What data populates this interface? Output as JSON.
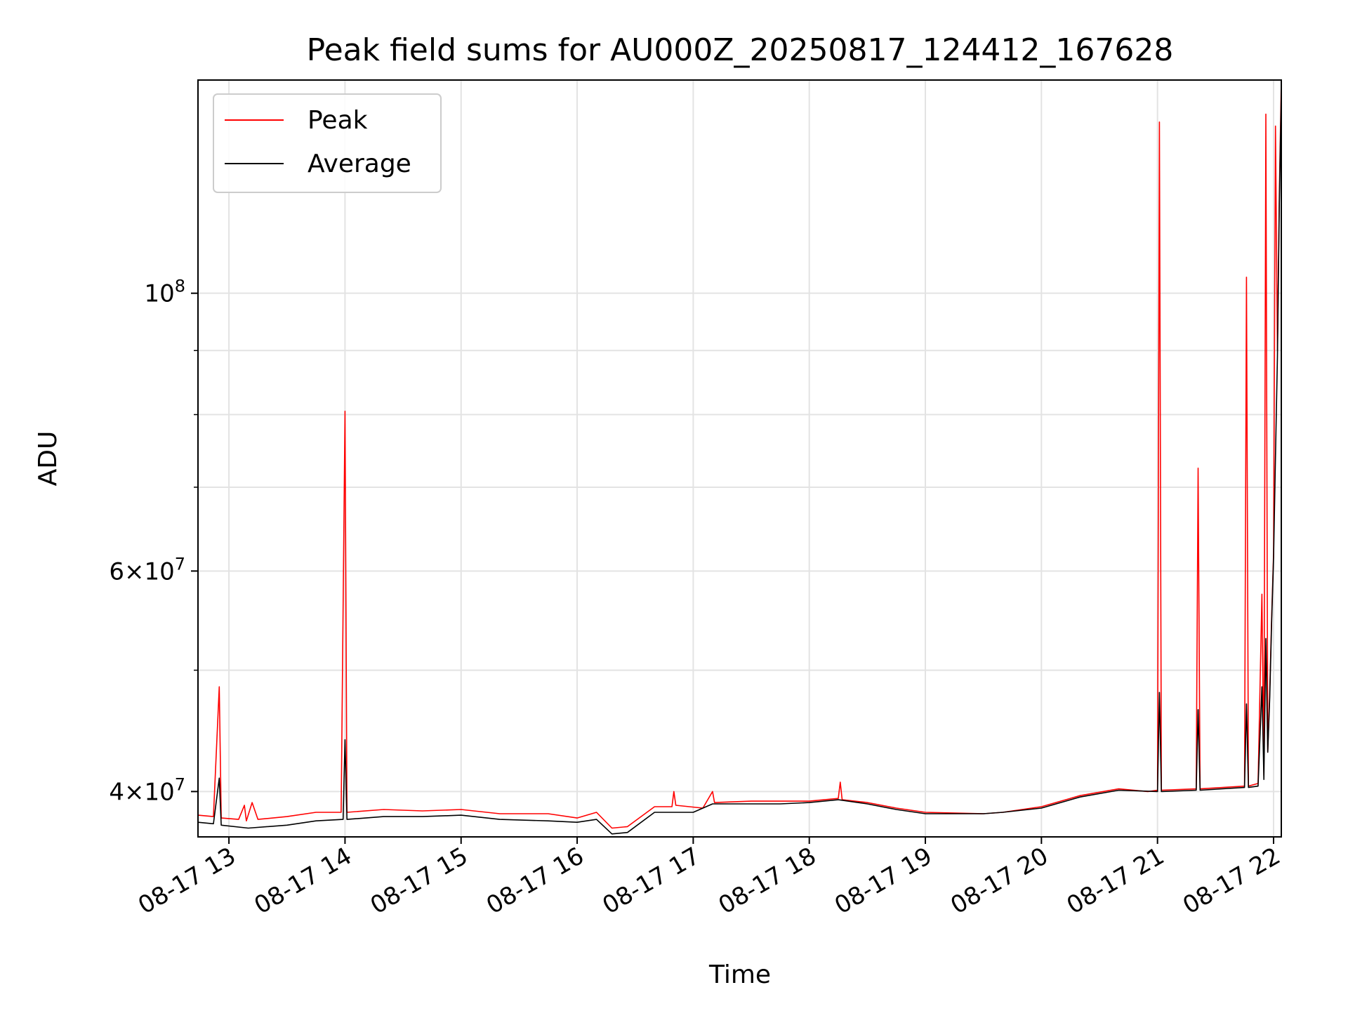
{
  "chart_data": {
    "type": "line",
    "title": "Peak field sums for AU000Z_20250817_124412_167628",
    "xlabel": "Time",
    "ylabel": "ADU",
    "y_scale": "log",
    "ylim": [
      36800000,
      148000000
    ],
    "xlim": [
      "2025-08-17 12:44",
      "2025-08-17 22:04"
    ],
    "grid": true,
    "legend": {
      "placement": "top-left"
    },
    "x_ticks": [
      {
        "value": "2025-08-17 13:00",
        "label": "08-17 13"
      },
      {
        "value": "2025-08-17 14:00",
        "label": "08-17 14"
      },
      {
        "value": "2025-08-17 15:00",
        "label": "08-17 15"
      },
      {
        "value": "2025-08-17 16:00",
        "label": "08-17 16"
      },
      {
        "value": "2025-08-17 17:00",
        "label": "08-17 17"
      },
      {
        "value": "2025-08-17 18:00",
        "label": "08-17 18"
      },
      {
        "value": "2025-08-17 19:00",
        "label": "08-17 19"
      },
      {
        "value": "2025-08-17 20:00",
        "label": "08-17 20"
      },
      {
        "value": "2025-08-17 21:00",
        "label": "08-17 21"
      },
      {
        "value": "2025-08-17 22:00",
        "label": "08-17 22"
      }
    ],
    "y_ticks_major": [
      {
        "value": 40000000,
        "mantissa": "4",
        "exponent": "7"
      },
      {
        "value": 60000000,
        "mantissa": "6",
        "exponent": "7"
      },
      {
        "value": 100000000,
        "mantissa": "",
        "exponent": "8"
      }
    ],
    "y_ticks_minor": [
      50000000,
      70000000,
      80000000,
      90000000
    ],
    "series": [
      {
        "name": "Peak",
        "color": "#ff0000",
        "points": [
          [
            "2025-08-17 12:44",
            38300000
          ],
          [
            "2025-08-17 12:52",
            38200000
          ],
          [
            "2025-08-17 12:55",
            48500000
          ],
          [
            "2025-08-17 12:56",
            38100000
          ],
          [
            "2025-08-17 13:05",
            38000000
          ],
          [
            "2025-08-17 13:08",
            39000000
          ],
          [
            "2025-08-17 13:09",
            37900000
          ],
          [
            "2025-08-17 13:12",
            39200000
          ],
          [
            "2025-08-17 13:15",
            38000000
          ],
          [
            "2025-08-17 13:30",
            38200000
          ],
          [
            "2025-08-17 13:45",
            38500000
          ],
          [
            "2025-08-17 13:58",
            38500000
          ],
          [
            "2025-08-17 14:00",
            80500000
          ],
          [
            "2025-08-17 14:01",
            38500000
          ],
          [
            "2025-08-17 14:20",
            38700000
          ],
          [
            "2025-08-17 14:40",
            38600000
          ],
          [
            "2025-08-17 15:00",
            38700000
          ],
          [
            "2025-08-17 15:20",
            38400000
          ],
          [
            "2025-08-17 15:45",
            38400000
          ],
          [
            "2025-08-17 16:00",
            38100000
          ],
          [
            "2025-08-17 16:10",
            38500000
          ],
          [
            "2025-08-17 16:18",
            37400000
          ],
          [
            "2025-08-17 16:26",
            37500000
          ],
          [
            "2025-08-17 16:40",
            38900000
          ],
          [
            "2025-08-17 16:49",
            38900000
          ],
          [
            "2025-08-17 16:50",
            40000000
          ],
          [
            "2025-08-17 16:51",
            39000000
          ],
          [
            "2025-08-17 17:05",
            38800000
          ],
          [
            "2025-08-17 17:10",
            40000000
          ],
          [
            "2025-08-17 17:11",
            39200000
          ],
          [
            "2025-08-17 17:30",
            39300000
          ],
          [
            "2025-08-17 17:45",
            39300000
          ],
          [
            "2025-08-17 18:00",
            39300000
          ],
          [
            "2025-08-17 18:15",
            39500000
          ],
          [
            "2025-08-17 18:16",
            40700000
          ],
          [
            "2025-08-17 18:17",
            39400000
          ],
          [
            "2025-08-17 18:30",
            39200000
          ],
          [
            "2025-08-17 18:45",
            38800000
          ],
          [
            "2025-08-17 19:00",
            38500000
          ],
          [
            "2025-08-17 19:30",
            38400000
          ],
          [
            "2025-08-17 19:40",
            38500000
          ],
          [
            "2025-08-17 20:00",
            38900000
          ],
          [
            "2025-08-17 20:20",
            39700000
          ],
          [
            "2025-08-17 20:40",
            40200000
          ],
          [
            "2025-08-17 20:55",
            40000000
          ],
          [
            "2025-08-17 21:00",
            40100000
          ],
          [
            "2025-08-17 21:01",
            137000000
          ],
          [
            "2025-08-17 21:02",
            40100000
          ],
          [
            "2025-08-17 21:20",
            40200000
          ],
          [
            "2025-08-17 21:21",
            72500000
          ],
          [
            "2025-08-17 21:22",
            40200000
          ],
          [
            "2025-08-17 21:45",
            40400000
          ],
          [
            "2025-08-17 21:46",
            103000000
          ],
          [
            "2025-08-17 21:47",
            40400000
          ],
          [
            "2025-08-17 21:52",
            40600000
          ],
          [
            "2025-08-17 21:54",
            57500000
          ],
          [
            "2025-08-17 21:55",
            41200000
          ],
          [
            "2025-08-17 21:56",
            139000000
          ],
          [
            "2025-08-17 21:57",
            43000000
          ],
          [
            "2025-08-17 21:58",
            48000000
          ],
          [
            "2025-08-17 21:59",
            55000000
          ],
          [
            "2025-08-17 22:00",
            62000000
          ],
          [
            "2025-08-17 22:01",
            136000000
          ],
          [
            "2025-08-17 22:02",
            90000000
          ],
          [
            "2025-08-17 22:03",
            120000000
          ],
          [
            "2025-08-17 22:04",
            148000000
          ]
        ]
      },
      {
        "name": "Average",
        "color": "#000000",
        "points": [
          [
            "2025-08-17 12:44",
            37800000
          ],
          [
            "2025-08-17 12:52",
            37700000
          ],
          [
            "2025-08-17 12:55",
            41000000
          ],
          [
            "2025-08-17 12:56",
            37600000
          ],
          [
            "2025-08-17 13:10",
            37400000
          ],
          [
            "2025-08-17 13:30",
            37600000
          ],
          [
            "2025-08-17 13:45",
            37900000
          ],
          [
            "2025-08-17 13:59",
            38000000
          ],
          [
            "2025-08-17 14:00",
            44000000
          ],
          [
            "2025-08-17 14:01",
            38000000
          ],
          [
            "2025-08-17 14:20",
            38200000
          ],
          [
            "2025-08-17 14:40",
            38200000
          ],
          [
            "2025-08-17 15:00",
            38300000
          ],
          [
            "2025-08-17 15:20",
            38000000
          ],
          [
            "2025-08-17 15:45",
            37900000
          ],
          [
            "2025-08-17 16:00",
            37800000
          ],
          [
            "2025-08-17 16:10",
            38000000
          ],
          [
            "2025-08-17 16:18",
            37000000
          ],
          [
            "2025-08-17 16:26",
            37100000
          ],
          [
            "2025-08-17 16:40",
            38500000
          ],
          [
            "2025-08-17 17:00",
            38500000
          ],
          [
            "2025-08-17 17:10",
            39100000
          ],
          [
            "2025-08-17 17:30",
            39100000
          ],
          [
            "2025-08-17 17:45",
            39100000
          ],
          [
            "2025-08-17 18:00",
            39200000
          ],
          [
            "2025-08-17 18:15",
            39400000
          ],
          [
            "2025-08-17 18:30",
            39100000
          ],
          [
            "2025-08-17 18:45",
            38700000
          ],
          [
            "2025-08-17 19:00",
            38400000
          ],
          [
            "2025-08-17 19:30",
            38400000
          ],
          [
            "2025-08-17 19:40",
            38500000
          ],
          [
            "2025-08-17 20:00",
            38800000
          ],
          [
            "2025-08-17 20:20",
            39600000
          ],
          [
            "2025-08-17 20:40",
            40100000
          ],
          [
            "2025-08-17 21:00",
            40000000
          ],
          [
            "2025-08-17 21:01",
            48000000
          ],
          [
            "2025-08-17 21:02",
            40000000
          ],
          [
            "2025-08-17 21:20",
            40100000
          ],
          [
            "2025-08-17 21:21",
            46500000
          ],
          [
            "2025-08-17 21:22",
            40100000
          ],
          [
            "2025-08-17 21:45",
            40300000
          ],
          [
            "2025-08-17 21:46",
            47000000
          ],
          [
            "2025-08-17 21:47",
            40300000
          ],
          [
            "2025-08-17 21:52",
            40400000
          ],
          [
            "2025-08-17 21:54",
            48500000
          ],
          [
            "2025-08-17 21:55",
            40900000
          ],
          [
            "2025-08-17 21:56",
            53000000
          ],
          [
            "2025-08-17 21:57",
            43000000
          ],
          [
            "2025-08-17 21:58",
            47500000
          ],
          [
            "2025-08-17 21:59",
            54500000
          ],
          [
            "2025-08-17 22:00",
            61500000
          ],
          [
            "2025-08-17 22:01",
            74000000
          ],
          [
            "2025-08-17 22:02",
            89000000
          ],
          [
            "2025-08-17 22:03",
            118000000
          ],
          [
            "2025-08-17 22:04",
            145000000
          ]
        ]
      }
    ]
  }
}
